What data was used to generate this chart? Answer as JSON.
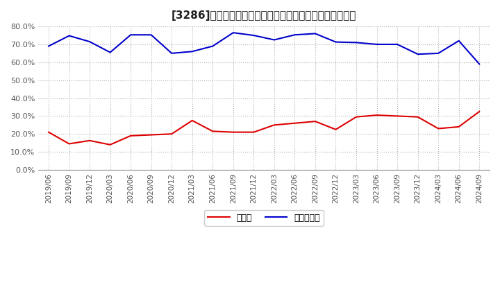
{
  "title": "[3286]　現預金、有利子負債の総資産に対する比率の推移",
  "x_labels": [
    "2019/06",
    "2019/09",
    "2019/12",
    "2020/03",
    "2020/06",
    "2020/09",
    "2020/12",
    "2021/03",
    "2021/06",
    "2021/09",
    "2021/12",
    "2022/03",
    "2022/06",
    "2022/09",
    "2022/12",
    "2023/03",
    "2023/06",
    "2023/09",
    "2023/12",
    "2024/03",
    "2024/06",
    "2024/09"
  ],
  "cash": [
    0.21,
    0.145,
    0.163,
    0.14,
    0.19,
    0.195,
    0.2,
    0.275,
    0.215,
    0.21,
    0.21,
    0.25,
    0.26,
    0.27,
    0.225,
    0.295,
    0.305,
    0.3,
    0.295,
    0.23,
    0.24,
    0.325
  ],
  "debt": [
    0.69,
    0.748,
    0.715,
    0.655,
    0.753,
    0.753,
    0.65,
    0.66,
    0.69,
    0.765,
    0.75,
    0.725,
    0.753,
    0.76,
    0.713,
    0.71,
    0.7,
    0.7,
    0.645,
    0.65,
    0.72,
    0.59
  ],
  "cash_color": "#dd0000",
  "debt_color": "#0000cc",
  "background_color": "#ffffff",
  "grid_color": "#aaaaaa",
  "ylim": [
    0.0,
    0.8
  ],
  "yticks": [
    0.0,
    0.1,
    0.2,
    0.3,
    0.4,
    0.5,
    0.6,
    0.7,
    0.8
  ],
  "legend_cash": "現預金",
  "legend_debt": "有利子負債",
  "title_fontsize": 11,
  "tick_fontsize": 7.5,
  "ytick_fontsize": 8
}
